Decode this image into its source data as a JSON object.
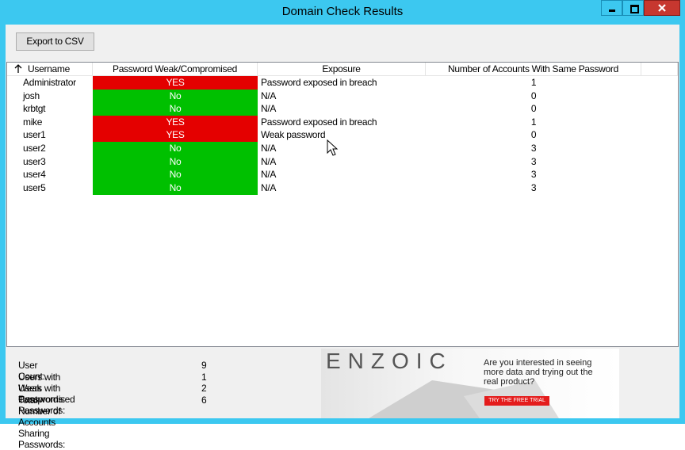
{
  "window": {
    "title": "Domain Check Results"
  },
  "toolbar": {
    "export_button": "Export to CSV"
  },
  "table": {
    "columns": [
      "Username",
      "Password Weak/Compromised",
      "Exposure",
      "Number of Accounts With Same Password"
    ],
    "rows": [
      [
        "Administrator",
        "YES",
        "Password exposed in breach",
        1
      ],
      [
        "josh",
        "No",
        "N/A",
        0
      ],
      [
        "krbtgt",
        "No",
        "N/A",
        0
      ],
      [
        "mike",
        "YES",
        "Password exposed in breach",
        1
      ],
      [
        "user1",
        "YES",
        "Weak password",
        0
      ],
      [
        "user2",
        "No",
        "N/A",
        3
      ],
      [
        "user3",
        "No",
        "N/A",
        3
      ],
      [
        "user4",
        "No",
        "N/A",
        3
      ],
      [
        "user5",
        "No",
        "N/A",
        3
      ]
    ]
  },
  "summary": [
    {
      "label": "User Count:",
      "value": 9
    },
    {
      "label": "Users with Weak Passwords:",
      "value": 1
    },
    {
      "label": "Users with Compromised Passwords:",
      "value": 2
    },
    {
      "label": "Total Number of Accounts Sharing Passwords:",
      "value": 6
    }
  ],
  "ad": {
    "brand": "ENZOIC",
    "text": "Are you interested in seeing more data and trying out the real product?",
    "button": "TRY THE FREE TRIAL"
  }
}
